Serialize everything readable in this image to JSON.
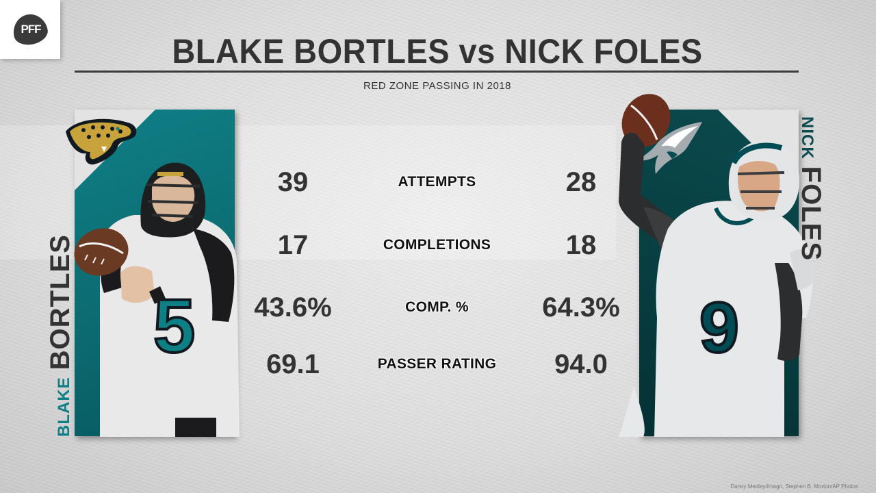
{
  "brand": {
    "logo_text": "PFF"
  },
  "header": {
    "title": "BLAKE BORTLES vs NICK FOLES",
    "subtitle": "RED ZONE PASSING IN 2018"
  },
  "left_player": {
    "first_name": "BLAKE",
    "last_name": "BORTLES",
    "jersey_number": "5",
    "team_logo_icon": "jaguars-logo-icon",
    "panel_color": "#0f7f86"
  },
  "right_player": {
    "first_name": "NICK",
    "last_name": "FOLES",
    "jersey_number": "9",
    "team_logo_icon": "eagles-logo-icon",
    "panel_color": "#0b4a4e"
  },
  "stats": [
    {
      "label": "ATTEMPTS",
      "left": "39",
      "right": "28"
    },
    {
      "label": "COMPLETIONS",
      "left": "17",
      "right": "18"
    },
    {
      "label": "COMP. %",
      "left": "43.6%",
      "right": "64.3%"
    },
    {
      "label": "PASSER RATING",
      "left": "69.1",
      "right": "94.0"
    }
  ],
  "footer": {
    "credit": "Danny Medley/Imagn, Stephen B. Morton/AP Photos"
  }
}
